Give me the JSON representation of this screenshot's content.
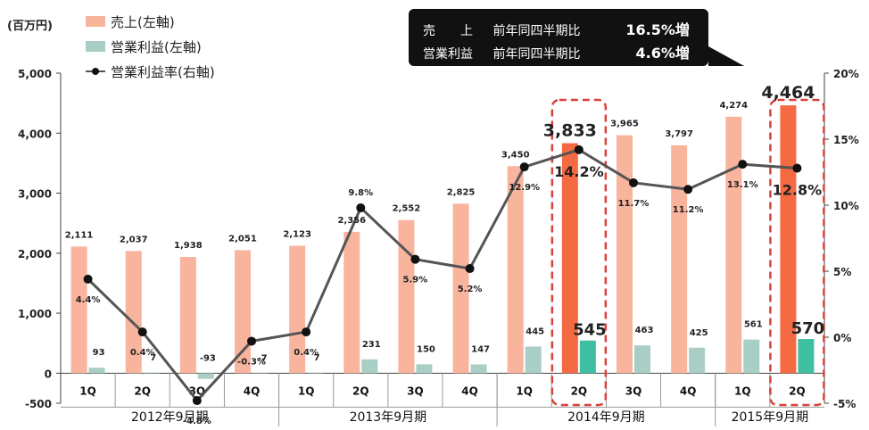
{
  "unit_label": "(百万円)",
  "legend": {
    "sales": "売上(左軸)",
    "op_income": "営業利益(左軸)",
    "op_margin": "営業利益率(右軸)"
  },
  "callout": {
    "rows": [
      {
        "key": "売　　上",
        "metric": "前年同四半期比",
        "value": "16.5%増"
      },
      {
        "key": "営業利益",
        "metric": "前年同四半期比",
        "value": "4.6%増"
      }
    ]
  },
  "colors": {
    "sales": "#F9B49E",
    "sales_highlight": "#F46B43",
    "op_income": "#A8CEC5",
    "op_income_highlight": "#3FBFA2",
    "line": "#555555",
    "marker": "#111111",
    "callout_border": "#D9413C"
  },
  "chart_data": {
    "type": "bar",
    "title": "",
    "categories": [
      "1Q",
      "2Q",
      "3Q",
      "4Q",
      "1Q",
      "2Q",
      "3Q",
      "4Q",
      "1Q",
      "2Q",
      "3Q",
      "4Q",
      "1Q",
      "2Q"
    ],
    "groups": [
      {
        "label": "2012年9月期",
        "span": 4
      },
      {
        "label": "2013年9月期",
        "span": 4
      },
      {
        "label": "2014年9月期",
        "span": 4
      },
      {
        "label": "2015年9月期",
        "span": 2
      }
    ],
    "series": [
      {
        "name": "売上(左軸)",
        "axis": "left",
        "kind": "bar",
        "values": [
          2111,
          2037,
          1938,
          2051,
          2123,
          2356,
          2552,
          2825,
          3450,
          3833,
          3965,
          3797,
          4274,
          4464
        ],
        "labels": [
          "2,111",
          "2,037",
          "1,938",
          "2,051",
          "2,123",
          "2,356",
          "2,552",
          "2,825",
          "3,450",
          "3,833",
          "3,965",
          "3,797",
          "4,274",
          "4,464"
        ]
      },
      {
        "name": "営業利益(左軸)",
        "axis": "left",
        "kind": "bar",
        "values": [
          93,
          7,
          -93,
          -7,
          7,
          231,
          150,
          147,
          445,
          545,
          463,
          425,
          561,
          570
        ],
        "labels": [
          "93",
          "7",
          "-93",
          "-7",
          "7",
          "231",
          "150",
          "147",
          "445",
          "545",
          "463",
          "425",
          "561",
          "570"
        ]
      },
      {
        "name": "営業利益率(右軸)",
        "axis": "right",
        "kind": "line",
        "values": [
          4.4,
          0.4,
          -4.8,
          -0.3,
          0.4,
          9.8,
          5.9,
          5.2,
          12.9,
          14.2,
          11.7,
          11.2,
          13.1,
          12.8
        ],
        "labels": [
          "4.4%",
          "0.4%",
          "-4.8%",
          "-0.3%",
          "0.4%",
          "9.8%",
          "5.9%",
          "5.2%",
          "12.9%",
          "14.2%",
          "11.7%",
          "11.2%",
          "13.1%",
          "12.8%"
        ]
      }
    ],
    "highlighted_indices": [
      9,
      13
    ],
    "y_left": {
      "min": -500,
      "max": 5000,
      "ticks": [
        5000,
        4000,
        3000,
        2000,
        1000,
        0,
        -500
      ],
      "tick_labels": [
        "5,000",
        "4,000",
        "3,000",
        "2,000",
        "1,000",
        "0",
        "-500"
      ]
    },
    "y_right": {
      "min": -5,
      "max": 20,
      "ticks": [
        20,
        15,
        10,
        5,
        0,
        -5
      ],
      "tick_labels": [
        "20%",
        "15%",
        "10%",
        "5%",
        "0%",
        "-5%"
      ]
    },
    "legend_position": "top-left",
    "grid": false
  }
}
